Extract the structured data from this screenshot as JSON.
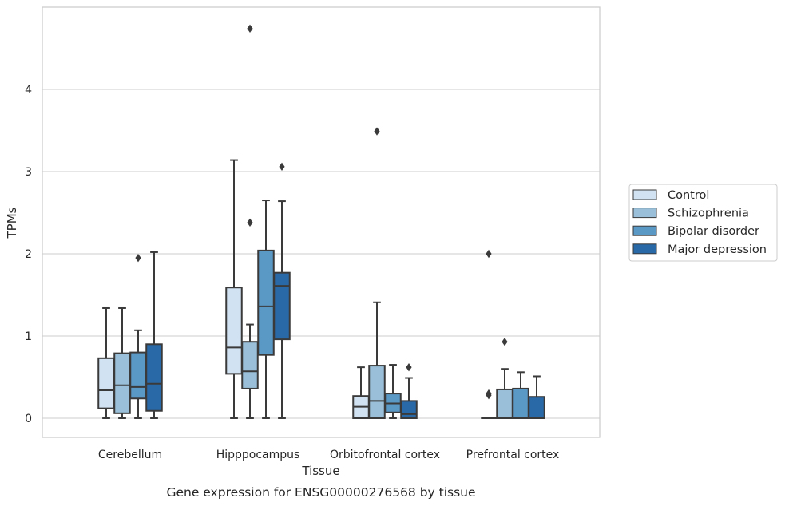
{
  "caption": "Gene expression for ENSG00000276568 by tissue",
  "chart_data": {
    "type": "box",
    "xlabel": "Tissue",
    "ylabel": "TPMs",
    "ylim": [
      -0.22,
      4.98
    ],
    "yticks": [
      0,
      1,
      2,
      3,
      4
    ],
    "grid": "horizontal",
    "legend_position": "right",
    "categories": [
      "Cerebellum",
      "Hipppocampus",
      "Orbitofrontal cortex",
      "Prefrontal cortex"
    ],
    "series": [
      {
        "name": "Control",
        "color": "#d1e2f2",
        "boxes": [
          {
            "whislo": 0.0,
            "q1": 0.12,
            "med": 0.34,
            "q3": 0.73,
            "whishi": 1.34,
            "fliers": []
          },
          {
            "whislo": 0.0,
            "q1": 0.54,
            "med": 0.86,
            "q3": 1.59,
            "whishi": 3.14,
            "fliers": []
          },
          {
            "whislo": 0.0,
            "q1": 0.0,
            "med": 0.14,
            "q3": 0.27,
            "whishi": 0.62,
            "fliers": []
          },
          {
            "whislo": 0.0,
            "q1": 0.0,
            "med": 0.0,
            "q3": 0.0,
            "whishi": 0.0,
            "fliers": []
          }
        ]
      },
      {
        "name": "Schizophrenia",
        "color": "#9ac0d9",
        "boxes": [
          {
            "whislo": 0.0,
            "q1": 0.06,
            "med": 0.4,
            "q3": 0.79,
            "whishi": 1.34,
            "fliers": []
          },
          {
            "whislo": 0.0,
            "q1": 0.36,
            "med": 0.57,
            "q3": 0.93,
            "whishi": 1.14,
            "fliers": [
              2.38,
              4.74
            ]
          },
          {
            "whislo": 0.0,
            "q1": 0.0,
            "med": 0.21,
            "q3": 0.64,
            "whishi": 1.41,
            "fliers": [
              3.49
            ]
          },
          {
            "whislo": 0.0,
            "q1": 0.0,
            "med": 0.0,
            "q3": 0.35,
            "whishi": 0.6,
            "fliers": [
              0.93
            ]
          }
        ]
      },
      {
        "name": "Bipolar disorder",
        "color": "#5a98c6",
        "boxes": [
          {
            "whislo": 0.0,
            "q1": 0.24,
            "med": 0.38,
            "q3": 0.8,
            "whishi": 1.07,
            "fliers": [
              1.95
            ]
          },
          {
            "whislo": 0.0,
            "q1": 0.77,
            "med": 1.36,
            "q3": 2.04,
            "whishi": 2.65,
            "fliers": []
          },
          {
            "whislo": 0.0,
            "q1": 0.07,
            "med": 0.18,
            "q3": 0.3,
            "whishi": 0.65,
            "fliers": []
          },
          {
            "whislo": 0.0,
            "q1": 0.0,
            "med": 0.0,
            "q3": 0.36,
            "whishi": 0.56,
            "fliers": []
          }
        ]
      },
      {
        "name": "Major depression",
        "color": "#2a69a8",
        "boxes": [
          {
            "whislo": 0.0,
            "q1": 0.09,
            "med": 0.42,
            "q3": 0.9,
            "whishi": 2.02,
            "fliers": []
          },
          {
            "whislo": 0.0,
            "q1": 0.96,
            "med": 1.61,
            "q3": 1.77,
            "whishi": 2.64,
            "fliers": [
              3.06
            ]
          },
          {
            "whislo": 0.0,
            "q1": 0.0,
            "med": 0.05,
            "q3": 0.21,
            "whishi": 0.49,
            "fliers": [
              0.62
            ]
          },
          {
            "whislo": 0.0,
            "q1": 0.0,
            "med": 0.0,
            "q3": 0.26,
            "whishi": 0.51,
            "fliers": []
          }
        ]
      }
    ],
    "extra_fliers": [
      {
        "category": 3,
        "series": 0,
        "values": [
          2.0,
          0.3,
          0.28
        ]
      }
    ]
  }
}
